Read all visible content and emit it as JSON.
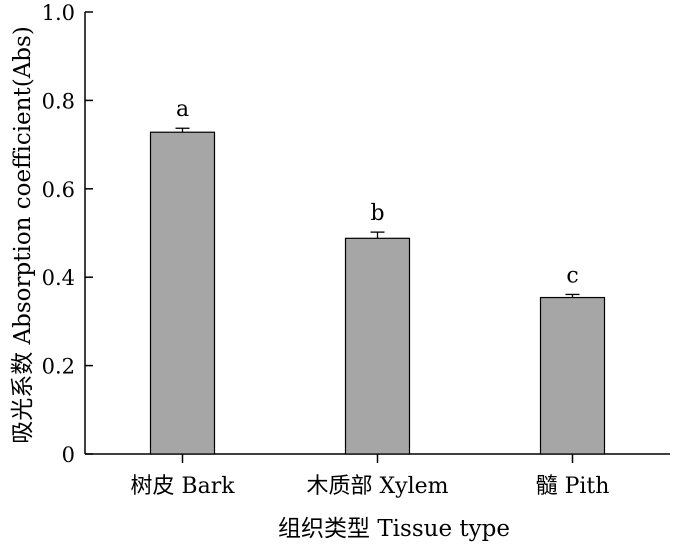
{
  "chart_data": {
    "type": "bar",
    "categories": [
      "树皮 Bark",
      "木质部 Xylem",
      "髓 Pith"
    ],
    "values": [
      0.728,
      0.488,
      0.354
    ],
    "errors": [
      0.009,
      0.014,
      0.007
    ],
    "significance_labels": [
      "a",
      "b",
      "c"
    ],
    "xlabel": "组织类型 Tissue type",
    "ylabel": "吸光系数 Absorption coefficient(Abs)",
    "ylim": [
      0,
      1.0
    ],
    "yticks": [
      "0",
      "0.2",
      "0.4",
      "0.6",
      "0.8",
      "1.0"
    ],
    "bar_color": "#a6a6a6",
    "grid": false,
    "legend": "none"
  }
}
